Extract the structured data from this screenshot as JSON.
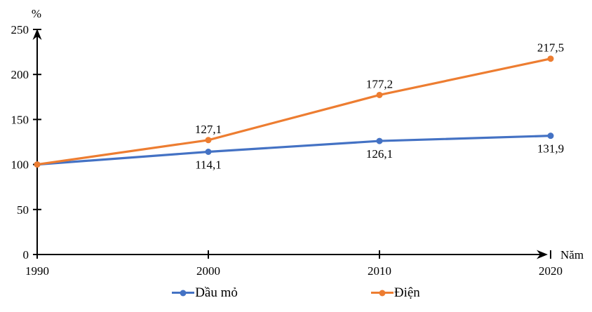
{
  "chart_data": {
    "type": "line",
    "x_categories": [
      "1990",
      "2000",
      "2010",
      "2020"
    ],
    "ylabel": "%",
    "xlabel": "Năm",
    "ylim": [
      0,
      250
    ],
    "yticks": [
      0,
      50,
      100,
      150,
      200,
      250
    ],
    "grid": false,
    "legend_position": "bottom",
    "axis_color": "#000000",
    "series": [
      {
        "name": "Dầu mỏ",
        "color": "#4472C4",
        "values": [
          100,
          114.1,
          126.1,
          131.9
        ],
        "point_labels": [
          "",
          "114,1",
          "126,1",
          "131,9"
        ],
        "label_position": "below"
      },
      {
        "name": "Điện",
        "color": "#ED7D31",
        "values": [
          100,
          127.1,
          177.2,
          217.5
        ],
        "point_labels": [
          "",
          "127,1",
          "177,2",
          "217,5"
        ],
        "label_position": "above"
      }
    ]
  }
}
